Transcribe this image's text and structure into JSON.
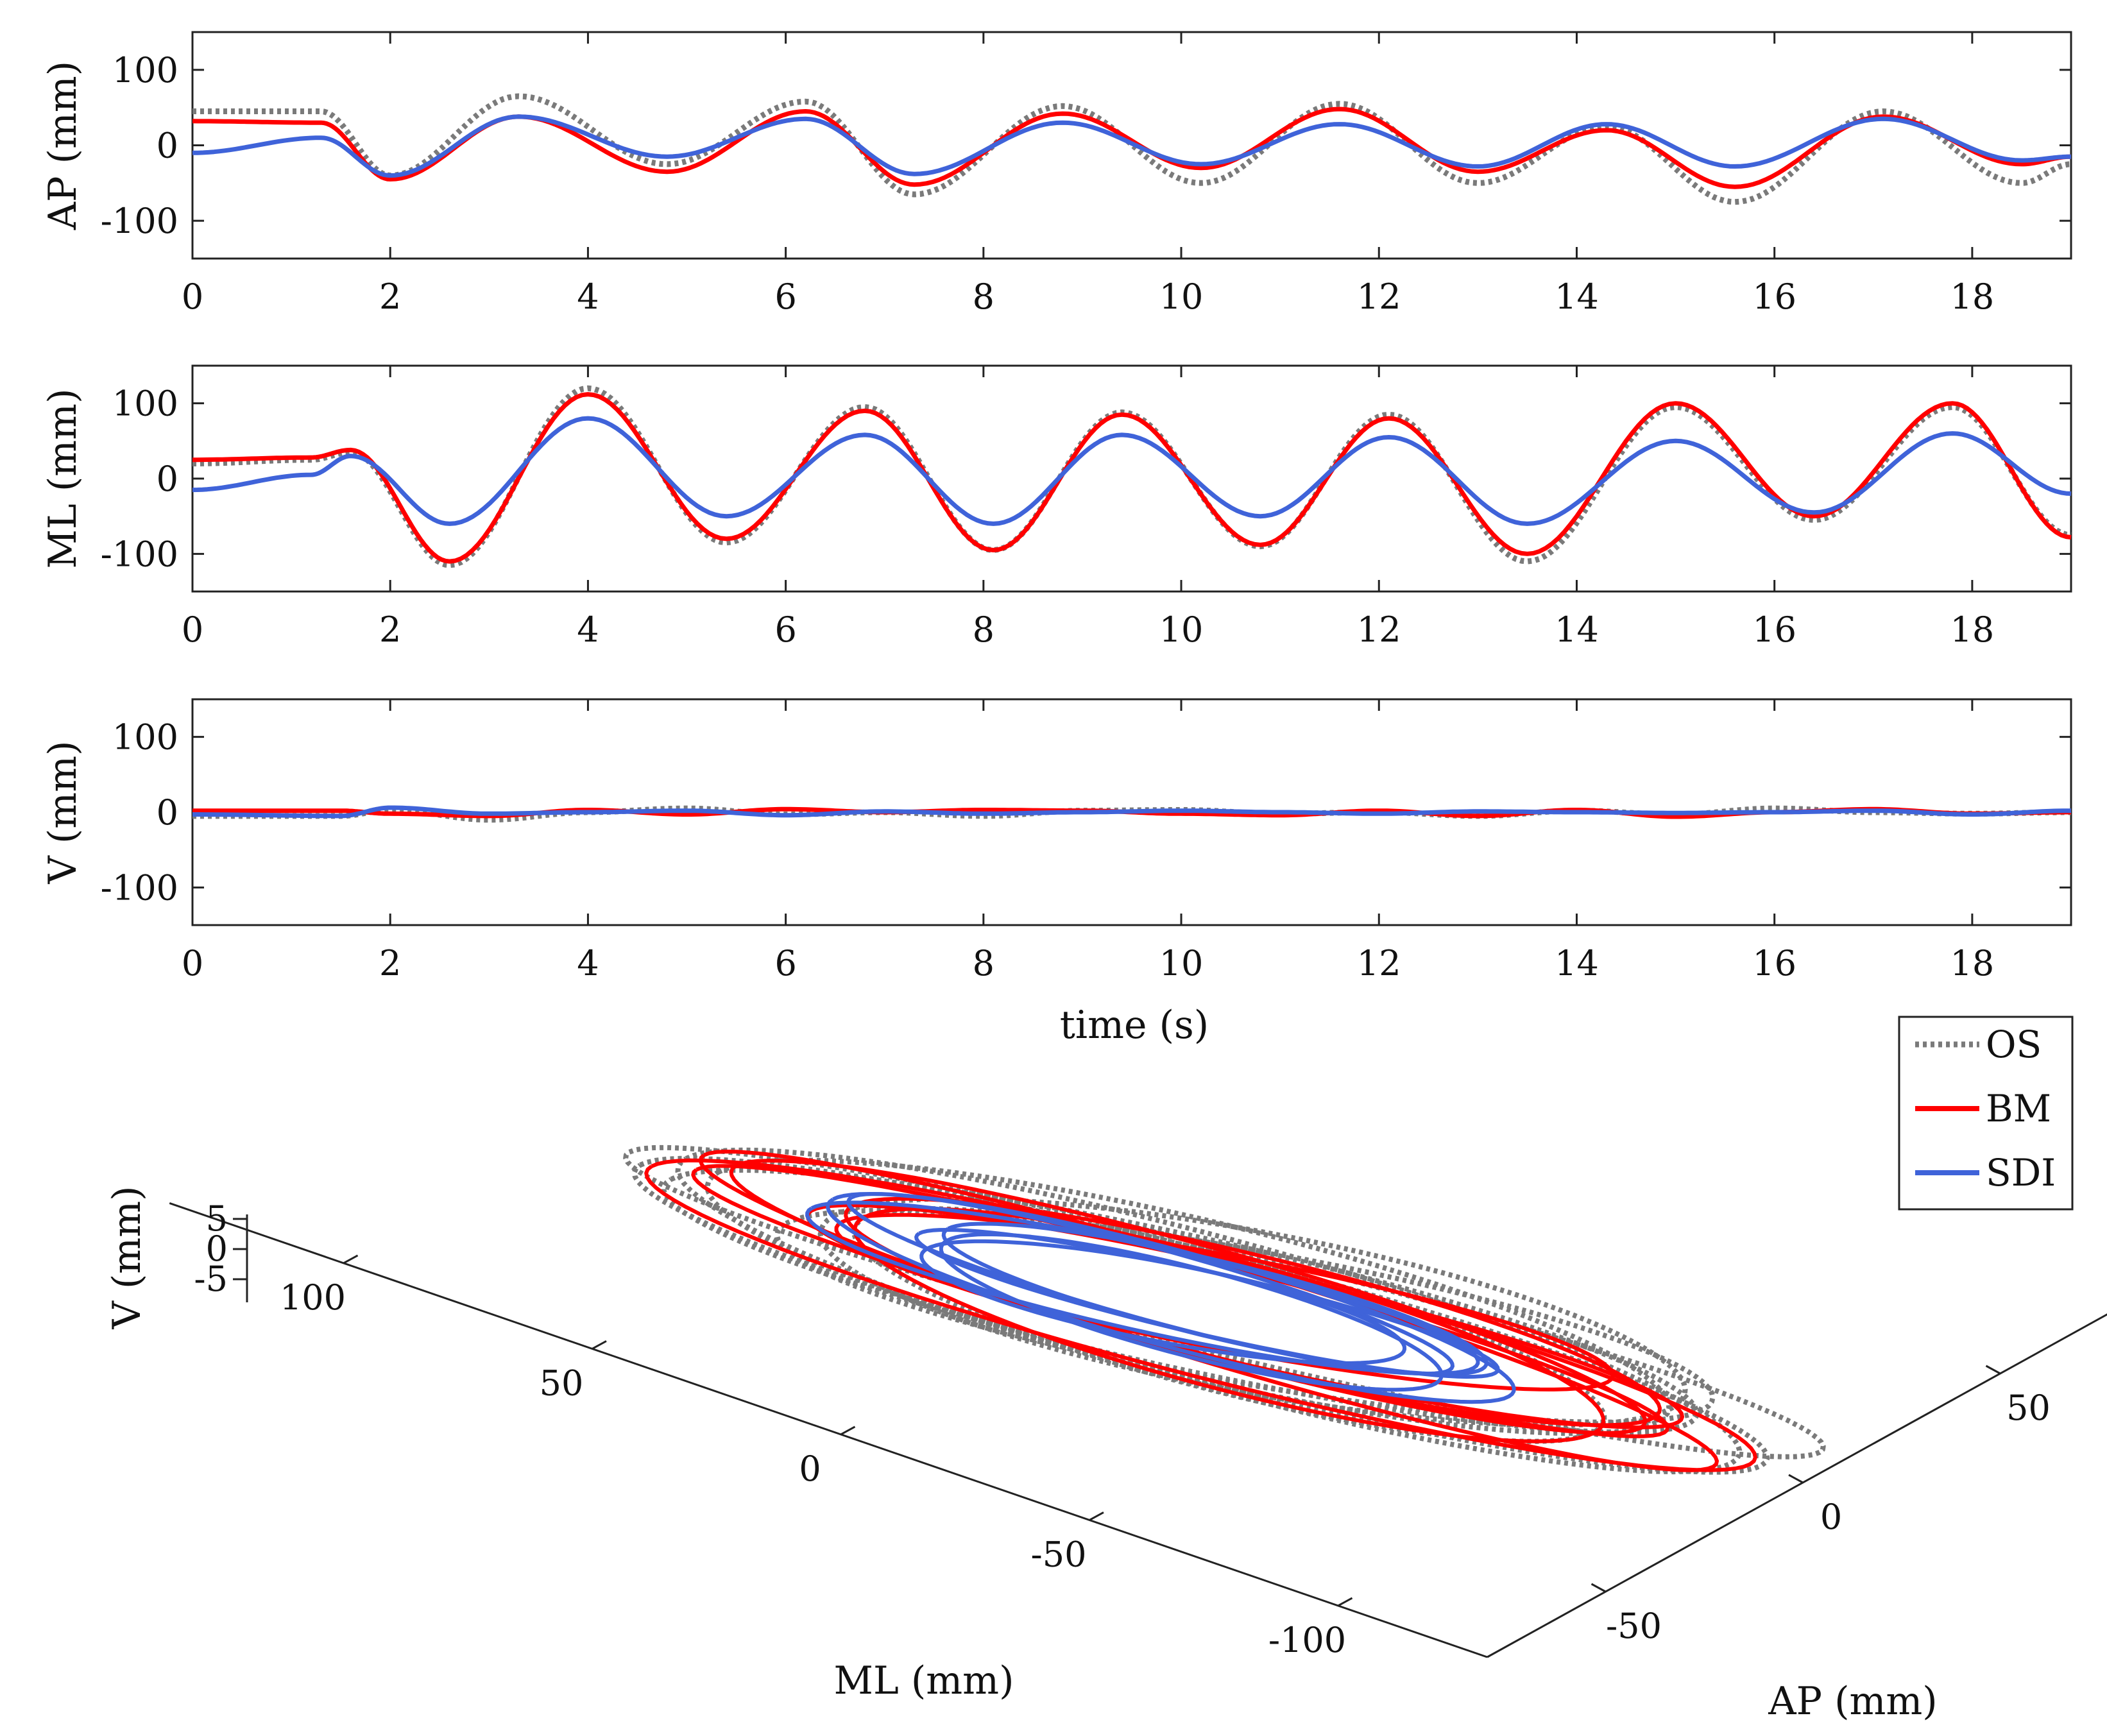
{
  "colors": {
    "OS": "#7a7a7a",
    "BM": "#ff0000",
    "SDI": "#3f63d9",
    "axis": "#222222"
  },
  "legend": {
    "placement": "right, between time-series and 3D panel",
    "items": [
      {
        "label": "OS",
        "style": "dotted"
      },
      {
        "label": "BM",
        "style": "solid"
      },
      {
        "label": "SDI",
        "style": "solid"
      }
    ]
  },
  "chart_data": [
    {
      "type": "line",
      "xlabel": "",
      "ylabel": "AP (mm)",
      "xlim": [
        0,
        19
      ],
      "ylim": [
        -150,
        150
      ],
      "xticks": [
        "0",
        "2",
        "4",
        "6",
        "8",
        "10",
        "12",
        "14",
        "16",
        "18"
      ],
      "yticks": [
        "100",
        "0",
        "-100"
      ],
      "series": [
        {
          "name": "OS",
          "x": [
            0,
            1.3,
            2.0,
            3.3,
            4.8,
            6.2,
            7.3,
            8.8,
            10.2,
            11.6,
            13.0,
            14.3,
            15.6,
            17.1,
            18.5,
            19
          ],
          "y": [
            45,
            45,
            -40,
            65,
            -25,
            58,
            -65,
            52,
            -50,
            55,
            -50,
            25,
            -75,
            45,
            -50,
            -25
          ]
        },
        {
          "name": "BM",
          "x": [
            0,
            1.3,
            2.0,
            3.3,
            4.8,
            6.2,
            7.3,
            8.8,
            10.2,
            11.6,
            13.0,
            14.3,
            15.6,
            17.1,
            18.5,
            19
          ],
          "y": [
            32,
            30,
            -45,
            38,
            -35,
            45,
            -52,
            42,
            -30,
            48,
            -35,
            20,
            -55,
            38,
            -25,
            -15
          ]
        },
        {
          "name": "SDI",
          "x": [
            0,
            1.3,
            2.0,
            3.3,
            4.8,
            6.2,
            7.3,
            8.8,
            10.2,
            11.6,
            13.0,
            14.3,
            15.6,
            17.1,
            18.5,
            19
          ],
          "y": [
            -10,
            10,
            -40,
            38,
            -15,
            35,
            -38,
            30,
            -25,
            28,
            -28,
            28,
            -28,
            35,
            -20,
            -15
          ]
        }
      ]
    },
    {
      "type": "line",
      "xlabel": "",
      "ylabel": "ML (mm)",
      "xlim": [
        0,
        19
      ],
      "ylim": [
        -150,
        150
      ],
      "xticks": [
        "0",
        "2",
        "4",
        "6",
        "8",
        "10",
        "12",
        "14",
        "16",
        "18"
      ],
      "yticks": [
        "100",
        "0",
        "-100"
      ],
      "series": [
        {
          "name": "OS",
          "x": [
            0,
            1.2,
            1.6,
            2.6,
            4.0,
            5.4,
            6.8,
            8.1,
            9.4,
            10.8,
            12.1,
            13.5,
            15.0,
            16.4,
            17.8,
            19
          ],
          "y": [
            20,
            25,
            35,
            -115,
            120,
            -85,
            95,
            -95,
            88,
            -90,
            85,
            -110,
            95,
            -55,
            95,
            -75
          ]
        },
        {
          "name": "BM",
          "x": [
            0,
            1.2,
            1.6,
            2.6,
            4.0,
            5.4,
            6.8,
            8.1,
            9.4,
            10.8,
            12.1,
            13.5,
            15.0,
            16.4,
            17.8,
            19
          ],
          "y": [
            25,
            28,
            38,
            -110,
            112,
            -80,
            90,
            -95,
            85,
            -88,
            80,
            -100,
            100,
            -50,
            100,
            -78
          ]
        },
        {
          "name": "SDI",
          "x": [
            0,
            1.2,
            1.6,
            2.6,
            4.0,
            5.4,
            6.8,
            8.1,
            9.4,
            10.8,
            12.1,
            13.5,
            15.0,
            16.4,
            17.8,
            19
          ],
          "y": [
            -15,
            5,
            30,
            -60,
            80,
            -50,
            58,
            -60,
            58,
            -50,
            55,
            -60,
            50,
            -45,
            60,
            -20
          ]
        }
      ]
    },
    {
      "type": "line",
      "xlabel": "time (s)",
      "ylabel": "V (mm)",
      "xlim": [
        0,
        19
      ],
      "ylim": [
        -150,
        150
      ],
      "xticks": [
        "0",
        "2",
        "4",
        "6",
        "8",
        "10",
        "12",
        "14",
        "16",
        "18"
      ],
      "yticks": [
        "100",
        "0",
        "-100"
      ],
      "series": [
        {
          "name": "OS",
          "x": [
            0,
            1.5,
            2,
            3,
            4,
            5,
            6,
            7,
            8,
            9,
            10,
            11,
            12,
            13,
            14,
            15,
            16,
            17,
            18,
            19
          ],
          "y": [
            -5,
            -5,
            3,
            -10,
            0,
            5,
            -3,
            0,
            -5,
            2,
            3,
            -2,
            0,
            -5,
            2,
            -3,
            5,
            0,
            -2,
            0
          ]
        },
        {
          "name": "BM",
          "x": [
            0,
            1.5,
            2,
            3,
            4,
            5,
            6,
            7,
            8,
            9,
            10,
            11,
            12,
            13,
            14,
            15,
            16,
            17,
            18,
            19
          ],
          "y": [
            2,
            2,
            -2,
            -5,
            3,
            -3,
            4,
            0,
            3,
            2,
            -2,
            -4,
            2,
            -5,
            3,
            -6,
            0,
            4,
            -2,
            0
          ]
        },
        {
          "name": "SDI",
          "x": [
            0,
            1.5,
            2,
            3,
            4,
            5,
            6,
            7,
            8,
            9,
            10,
            11,
            12,
            13,
            14,
            15,
            16,
            17,
            18,
            19
          ],
          "y": [
            -3,
            -5,
            6,
            -2,
            0,
            2,
            -4,
            1,
            -2,
            0,
            2,
            0,
            -2,
            1,
            0,
            -1,
            0,
            2,
            -3,
            2
          ]
        }
      ]
    },
    {
      "type": "3d-line",
      "xlabel": "ML (mm)",
      "ylabel": "AP (mm)",
      "zlabel": "V (mm)",
      "ml_ticks": [
        "100",
        "50",
        "0",
        "-50",
        "-100"
      ],
      "ap_ticks": [
        "50",
        "0",
        "-50"
      ],
      "v_ticks": [
        "5",
        "0",
        "-5"
      ],
      "series": [
        {
          "name": "OS",
          "ml_range": [
            -115,
            120
          ],
          "ap_range": [
            -75,
            65
          ],
          "loops": 8
        },
        {
          "name": "BM",
          "ml_range": [
            -110,
            112
          ],
          "ap_range": [
            -55,
            48
          ],
          "loops": 8
        },
        {
          "name": "SDI",
          "ml_range": [
            -60,
            80
          ],
          "ap_range": [
            -40,
            38
          ],
          "loops": 7
        }
      ]
    }
  ]
}
